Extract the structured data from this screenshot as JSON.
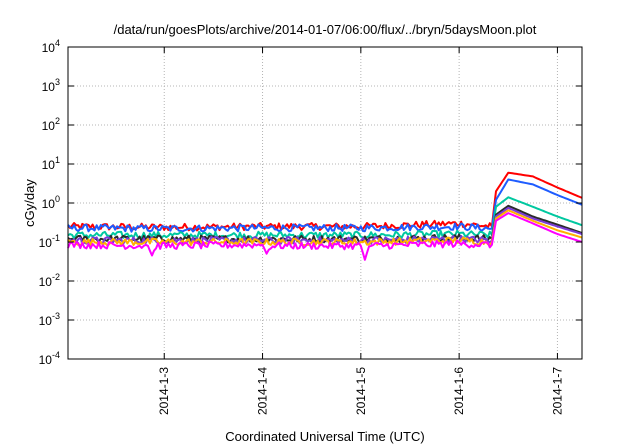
{
  "chart_data": {
    "type": "line",
    "title": "/data/run/goesPlots/archive/2014-01-07/06:00/flux/../bryn/5daysMoon.plot",
    "xlabel": "Coordinated Universal Time (UTC)",
    "ylabel": "cGy/day",
    "yscale": "log",
    "ylim": [
      0.0001,
      10000
    ],
    "xlim": [
      "2014-01-02T00:30",
      "2014-01-07T06:00"
    ],
    "grid": true,
    "legend": "none",
    "x_ticks": [
      {
        "x": "2014-01-03",
        "label": "2014-1-3"
      },
      {
        "x": "2014-01-04",
        "label": "2014-1-4"
      },
      {
        "x": "2014-01-05",
        "label": "2014-1-5"
      },
      {
        "x": "2014-01-06",
        "label": "2014-1-6"
      },
      {
        "x": "2014-01-07",
        "label": "2014-1-7"
      }
    ],
    "y_ticks": [
      {
        "y": 0.0001,
        "base": "10",
        "exp": "-4"
      },
      {
        "y": 0.001,
        "base": "10",
        "exp": "-3"
      },
      {
        "y": 0.01,
        "base": "10",
        "exp": "-2"
      },
      {
        "y": 0.1,
        "base": "10",
        "exp": "-1"
      },
      {
        "y": 1,
        "base": "10",
        "exp": "0"
      },
      {
        "y": 10,
        "base": "10",
        "exp": "1"
      },
      {
        "y": 100,
        "base": "10",
        "exp": "2"
      },
      {
        "y": 1000,
        "base": "10",
        "exp": "3"
      },
      {
        "y": 10000,
        "base": "10",
        "exp": "4"
      }
    ],
    "series": [
      {
        "color": "#ff0000",
        "points": [
          [
            "2014-01-02T00:30",
            0.25
          ],
          [
            "2014-01-03T00:00",
            0.24
          ],
          [
            "2014-01-04T00:00",
            0.25
          ],
          [
            "2014-01-05T00:00",
            0.25
          ],
          [
            "2014-01-06T00:00",
            0.3
          ],
          [
            "2014-01-06T08:00",
            0.25
          ],
          [
            "2014-01-06T09:00",
            2.0
          ],
          [
            "2014-01-06T12:00",
            6.0
          ],
          [
            "2014-01-06T18:00",
            4.8
          ],
          [
            "2014-01-07T00:00",
            2.5
          ],
          [
            "2014-01-07T06:00",
            1.35
          ]
        ]
      },
      {
        "color": "#1e5cff",
        "points": [
          [
            "2014-01-02T00:30",
            0.23
          ],
          [
            "2014-01-03T00:00",
            0.22
          ],
          [
            "2014-01-04T00:00",
            0.23
          ],
          [
            "2014-01-05T00:00",
            0.23
          ],
          [
            "2014-01-06T00:00",
            0.25
          ],
          [
            "2014-01-06T08:00",
            0.22
          ],
          [
            "2014-01-06T09:00",
            1.2
          ],
          [
            "2014-01-06T12:00",
            4.0
          ],
          [
            "2014-01-06T18:00",
            3.0
          ],
          [
            "2014-01-07T00:00",
            1.6
          ],
          [
            "2014-01-07T06:00",
            0.9
          ]
        ]
      },
      {
        "color": "#00c8a0",
        "points": [
          [
            "2014-01-02T00:30",
            0.15
          ],
          [
            "2014-01-03T00:00",
            0.15
          ],
          [
            "2014-01-04T00:00",
            0.15
          ],
          [
            "2014-01-05T00:00",
            0.15
          ],
          [
            "2014-01-06T00:00",
            0.16
          ],
          [
            "2014-01-06T08:00",
            0.15
          ],
          [
            "2014-01-06T09:00",
            0.8
          ],
          [
            "2014-01-06T12:00",
            1.4
          ],
          [
            "2014-01-06T18:00",
            0.8
          ],
          [
            "2014-01-07T00:00",
            0.45
          ],
          [
            "2014-01-07T06:00",
            0.27
          ]
        ]
      },
      {
        "color": "#2b2b2b",
        "points": [
          [
            "2014-01-02T00:30",
            0.12
          ],
          [
            "2014-01-03T00:00",
            0.12
          ],
          [
            "2014-01-04T00:00",
            0.12
          ],
          [
            "2014-01-05T00:00",
            0.12
          ],
          [
            "2014-01-06T00:00",
            0.13
          ],
          [
            "2014-01-06T08:00",
            0.12
          ],
          [
            "2014-01-06T09:00",
            0.5
          ],
          [
            "2014-01-06T12:00",
            0.85
          ],
          [
            "2014-01-06T18:00",
            0.45
          ],
          [
            "2014-01-07T00:00",
            0.28
          ],
          [
            "2014-01-07T06:00",
            0.17
          ]
        ]
      },
      {
        "color": "#7a3bd8",
        "points": [
          [
            "2014-01-02T00:30",
            0.11
          ],
          [
            "2014-01-03T00:00",
            0.11
          ],
          [
            "2014-01-04T00:00",
            0.11
          ],
          [
            "2014-01-05T00:00",
            0.11
          ],
          [
            "2014-01-06T00:00",
            0.12
          ],
          [
            "2014-01-06T08:00",
            0.11
          ],
          [
            "2014-01-06T09:00",
            0.45
          ],
          [
            "2014-01-06T12:00",
            0.75
          ],
          [
            "2014-01-06T18:00",
            0.4
          ],
          [
            "2014-01-07T00:00",
            0.25
          ],
          [
            "2014-01-07T06:00",
            0.16
          ]
        ]
      },
      {
        "color": "#ffb000",
        "points": [
          [
            "2014-01-02T00:30",
            0.1
          ],
          [
            "2014-01-03T00:00",
            0.1
          ],
          [
            "2014-01-04T00:00",
            0.1
          ],
          [
            "2014-01-05T00:00",
            0.1
          ],
          [
            "2014-01-06T00:00",
            0.11
          ],
          [
            "2014-01-06T08:00",
            0.1
          ],
          [
            "2014-01-06T09:00",
            0.4
          ],
          [
            "2014-01-06T12:00",
            0.65
          ],
          [
            "2014-01-06T18:00",
            0.35
          ],
          [
            "2014-01-07T00:00",
            0.2
          ],
          [
            "2014-01-07T06:00",
            0.13
          ]
        ]
      },
      {
        "color": "#ff00ff",
        "points": [
          [
            "2014-01-02T00:30",
            0.085
          ],
          [
            "2014-01-02T20:00",
            0.08
          ],
          [
            "2014-01-02T21:00",
            0.045
          ],
          [
            "2014-01-02T22:00",
            0.08
          ],
          [
            "2014-01-04T00:00",
            0.085
          ],
          [
            "2014-01-04T01:00",
            0.05
          ],
          [
            "2014-01-04T02:00",
            0.08
          ],
          [
            "2014-01-05T00:00",
            0.08
          ],
          [
            "2014-01-05T01:00",
            0.035
          ],
          [
            "2014-01-05T02:00",
            0.08
          ],
          [
            "2014-01-06T00:00",
            0.09
          ],
          [
            "2014-01-06T08:00",
            0.085
          ],
          [
            "2014-01-06T09:00",
            0.35
          ],
          [
            "2014-01-06T12:00",
            0.55
          ],
          [
            "2014-01-06T18:00",
            0.3
          ],
          [
            "2014-01-07T00:00",
            0.16
          ],
          [
            "2014-01-07T06:00",
            0.1
          ]
        ]
      }
    ]
  }
}
